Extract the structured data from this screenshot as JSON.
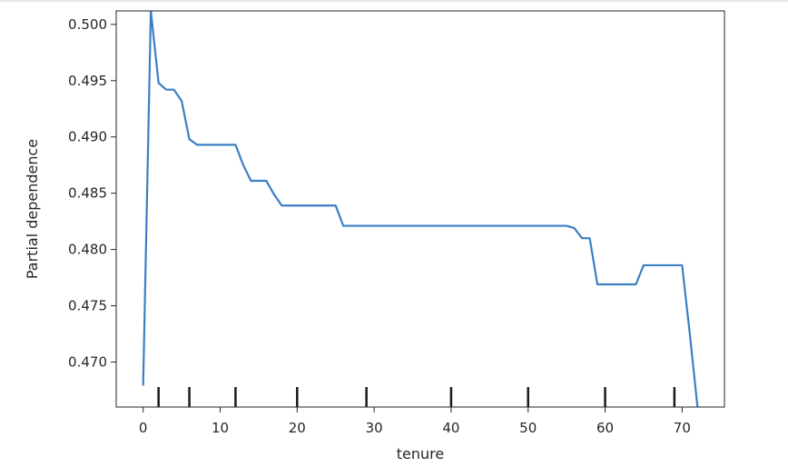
{
  "chart_data": {
    "type": "line",
    "title": "",
    "xlabel": "tenure",
    "ylabel": "Partial dependence",
    "xlim": [
      -3.5,
      75.5
    ],
    "ylim": [
      0.466,
      0.5012
    ],
    "x_ticks": [
      0,
      10,
      20,
      30,
      40,
      50,
      60,
      70
    ],
    "y_ticks": [
      0.47,
      0.475,
      0.48,
      0.485,
      0.49,
      0.495,
      0.5
    ],
    "y_tick_labels": [
      "0.470",
      "0.475",
      "0.480",
      "0.485",
      "0.490",
      "0.495",
      "0.500"
    ],
    "grid": false,
    "line_color": "#3b7fc4",
    "deciles": [
      2,
      6,
      12,
      20,
      29,
      40,
      50,
      60,
      69
    ],
    "series": [
      {
        "x": [
          0,
          1,
          2,
          3,
          4,
          5,
          6,
          7,
          8,
          9,
          10,
          11,
          12,
          13,
          14,
          15,
          16,
          17,
          18,
          19,
          20,
          21,
          22,
          23,
          24,
          25,
          26,
          27,
          28,
          29,
          30,
          35,
          40,
          45,
          50,
          55,
          56,
          57,
          58,
          59,
          60,
          61,
          62,
          63,
          64,
          65,
          66,
          67,
          68,
          69,
          70,
          71,
          72
        ],
        "y": [
          0.4679,
          0.5012,
          0.4948,
          0.4942,
          0.4942,
          0.4932,
          0.4898,
          0.4893,
          0.4893,
          0.4893,
          0.4893,
          0.4893,
          0.4893,
          0.4875,
          0.4861,
          0.4861,
          0.4861,
          0.4849,
          0.4839,
          0.4839,
          0.4839,
          0.4839,
          0.4839,
          0.4839,
          0.4839,
          0.4839,
          0.4821,
          0.4821,
          0.4821,
          0.4821,
          0.4821,
          0.4821,
          0.4821,
          0.4821,
          0.4821,
          0.4821,
          0.4819,
          0.481,
          0.481,
          0.4769,
          0.4769,
          0.4769,
          0.4769,
          0.4769,
          0.4769,
          0.4786,
          0.4786,
          0.4786,
          0.4786,
          0.4786,
          0.4786,
          0.4725,
          0.466
        ]
      }
    ]
  }
}
